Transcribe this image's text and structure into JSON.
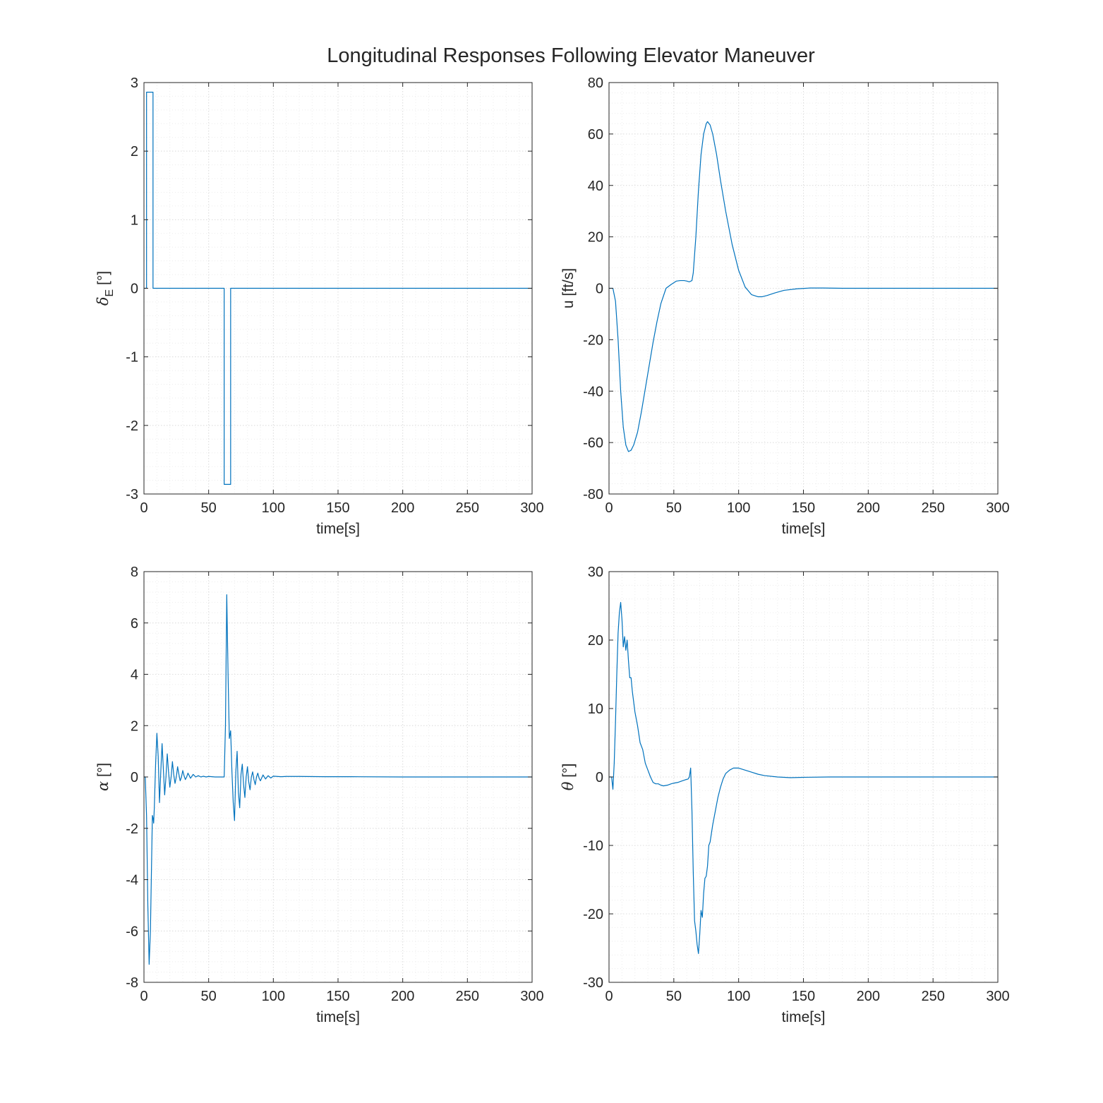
{
  "figure": {
    "title": "Longitudinal Responses Following Elevator Maneuver"
  },
  "colors": {
    "line": "#0072BD",
    "axes": "#262626",
    "grid": "#dcdcdc"
  },
  "chart_data": [
    {
      "type": "line",
      "id": "elevator",
      "xlabel": "time[s]",
      "ylabel": {
        "base": "δ",
        "sub": "E",
        "unit": " [°]"
      },
      "xlim": [
        0,
        300
      ],
      "ylim": [
        -3,
        3
      ],
      "xticks": [
        0,
        50,
        100,
        150,
        200,
        250,
        300
      ],
      "yticks": [
        -3,
        -2,
        -1,
        0,
        1,
        2,
        3
      ],
      "grid": true,
      "minor_grid": true,
      "series": [
        {
          "x": [
            0,
            1,
            1,
            2,
            2,
            7,
            7,
            62,
            62,
            67,
            67,
            300
          ],
          "y": [
            0,
            0,
            0,
            0,
            2.86,
            2.86,
            0,
            0,
            -2.86,
            -2.86,
            0,
            0
          ]
        }
      ]
    },
    {
      "type": "line",
      "id": "u-speed",
      "xlabel": "time[s]",
      "ylabel": "u [ft/s]",
      "xlim": [
        0,
        300
      ],
      "ylim": [
        -80,
        80
      ],
      "xticks": [
        0,
        50,
        100,
        150,
        200,
        250,
        300
      ],
      "yticks": [
        -80,
        -60,
        -40,
        -20,
        0,
        20,
        40,
        60,
        80
      ],
      "grid": true,
      "minor_grid": true,
      "series": [
        {
          "x": [
            0,
            2,
            3,
            5,
            7,
            9,
            11,
            13,
            15,
            17,
            19,
            22,
            25,
            28,
            31,
            34,
            37,
            40,
            44,
            48,
            52,
            55,
            58,
            60,
            62,
            64,
            65,
            67,
            69,
            71,
            73,
            75,
            76,
            78,
            80,
            83,
            86,
            90,
            95,
            100,
            105,
            110,
            115,
            118,
            122,
            128,
            135,
            145,
            155,
            165,
            180,
            200,
            250,
            300
          ],
          "y": [
            0,
            0,
            0,
            -5,
            -20,
            -40,
            -54,
            -61,
            -63.5,
            -63,
            -61,
            -56,
            -48,
            -39,
            -30,
            -21,
            -13,
            -6,
            0,
            1.5,
            2.8,
            3,
            3,
            2.8,
            2.5,
            3,
            6,
            20,
            38,
            52,
            60,
            64,
            64.8,
            63.5,
            60,
            52,
            42,
            30,
            17,
            7,
            0.5,
            -2.5,
            -3.3,
            -3.3,
            -2.8,
            -1.8,
            -0.8,
            -0.2,
            0.1,
            0.1,
            0,
            0,
            0,
            0
          ]
        }
      ]
    },
    {
      "type": "line",
      "id": "alpha",
      "xlabel": "time[s]",
      "ylabel": {
        "base": "α",
        "unit": " [°]"
      },
      "xlim": [
        0,
        300
      ],
      "ylim": [
        -8,
        8
      ],
      "xticks": [
        0,
        50,
        100,
        150,
        200,
        250,
        300
      ],
      "yticks": [
        -8,
        -6,
        -4,
        -2,
        0,
        2,
        4,
        6,
        8
      ],
      "grid": true,
      "minor_grid": true,
      "series": [
        {
          "x": [
            0,
            1,
            2,
            3,
            4,
            5,
            6,
            6.5,
            7,
            7.5,
            8,
            9,
            10,
            11,
            12,
            13,
            14,
            15,
            16,
            17,
            18,
            19,
            20,
            21,
            22,
            23,
            24,
            25,
            26,
            27,
            28,
            29,
            30,
            31,
            32,
            33,
            34,
            35,
            36,
            38,
            40,
            42,
            44,
            46,
            48,
            50,
            55,
            60,
            62,
            63,
            64,
            65,
            66,
            67,
            68,
            69,
            70,
            71,
            72,
            73,
            74,
            75,
            76,
            77,
            78,
            79,
            80,
            81,
            82,
            83,
            84,
            85,
            86,
            87,
            88,
            89,
            90,
            92,
            94,
            96,
            98,
            100,
            103,
            106,
            110,
            120,
            140,
            160,
            200,
            250,
            300
          ],
          "y": [
            0,
            0,
            -1.5,
            -5,
            -7.3,
            -6,
            -3,
            -1.5,
            -1.6,
            -1.8,
            -1.2,
            0.5,
            1.7,
            0.8,
            -1,
            0.2,
            1.3,
            0.3,
            -0.7,
            0,
            0.9,
            0.2,
            -0.4,
            0,
            0.6,
            0.1,
            -0.25,
            0,
            0.4,
            0.1,
            -0.15,
            0,
            0.25,
            0.05,
            -0.1,
            0,
            0.15,
            0.05,
            -0.05,
            0.1,
            0,
            0.05,
            0,
            0.03,
            0,
            0.02,
            0,
            0,
            0,
            2,
            7.1,
            4,
            1.5,
            1.8,
            0.2,
            -1,
            -1.7,
            0.2,
            1,
            -0.6,
            -1.2,
            0.1,
            0.5,
            -0.3,
            -0.8,
            0,
            0.4,
            -0.2,
            -0.5,
            0,
            0.2,
            -0.1,
            -0.3,
            0,
            0.15,
            -0.05,
            -0.15,
            0.08,
            -0.08,
            0.05,
            -0.04,
            0.03,
            0.02,
            0.01,
            0.02,
            0.02,
            0.01,
            0.01,
            0,
            0,
            0
          ]
        }
      ]
    },
    {
      "type": "line",
      "id": "theta",
      "xlabel": "time[s]",
      "ylabel": {
        "base": "θ",
        "unit": " [°]"
      },
      "xlim": [
        0,
        300
      ],
      "ylim": [
        -30,
        30
      ],
      "xticks": [
        0,
        50,
        100,
        150,
        200,
        250,
        300
      ],
      "yticks": [
        -30,
        -20,
        -10,
        0,
        10,
        20,
        30
      ],
      "grid": true,
      "minor_grid": true,
      "series": [
        {
          "x": [
            0,
            1,
            2,
            3,
            4,
            5,
            6,
            7,
            8,
            9,
            10,
            11,
            12,
            13,
            14,
            15,
            16,
            17,
            18,
            20,
            22,
            24,
            26,
            28,
            30,
            32,
            34,
            36,
            38,
            40,
            42,
            45,
            48,
            50,
            53,
            56,
            59,
            61,
            62,
            63,
            64,
            65,
            66,
            67,
            68,
            69,
            70,
            71,
            72,
            73,
            74,
            75,
            76,
            77,
            78,
            80,
            82,
            84,
            86,
            88,
            90,
            93,
            96,
            100,
            105,
            110,
            115,
            120,
            130,
            140,
            150,
            170,
            200,
            250,
            300
          ],
          "y": [
            0,
            0,
            0,
            -1.8,
            2,
            8,
            15,
            21,
            24,
            25.5,
            23,
            19,
            20.5,
            18.5,
            20,
            17,
            14.5,
            14.5,
            12.5,
            9.5,
            7.5,
            5,
            4,
            2,
            1,
            0,
            -0.8,
            -1,
            -1,
            -1.2,
            -1.3,
            -1.2,
            -1,
            -0.9,
            -0.8,
            -0.6,
            -0.4,
            -0.3,
            0,
            1.3,
            -5,
            -14,
            -21,
            -22.5,
            -24.5,
            -25.8,
            -23,
            -19.5,
            -20.5,
            -17,
            -14.8,
            -14.5,
            -13,
            -10,
            -9.5,
            -7,
            -5,
            -3,
            -1.5,
            -0.3,
            0.5,
            1,
            1.3,
            1.3,
            1,
            0.7,
            0.4,
            0.2,
            0,
            -0.1,
            -0.05,
            0,
            0,
            0,
            0
          ]
        }
      ]
    }
  ]
}
